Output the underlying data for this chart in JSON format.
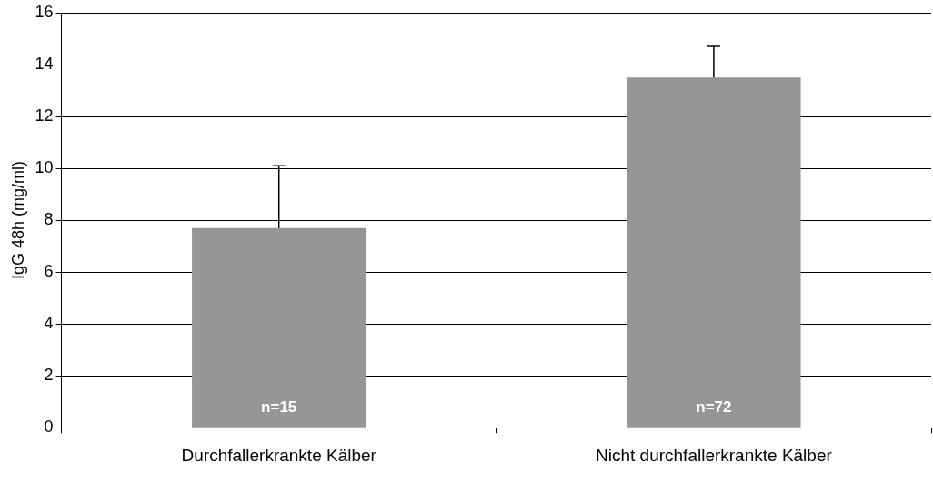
{
  "chart_data": {
    "type": "bar",
    "ylabel": "IgG 48h (mg/ml)",
    "categories": [
      "Durchfallerkrankte Kälber",
      "Nicht durchfallerkrankte Kälber"
    ],
    "values": [
      7.7,
      13.5
    ],
    "color": "#969696",
    "errors": [
      [
        7.7,
        10.1
      ],
      [
        13.5,
        14.7
      ]
    ],
    "ylim": [
      0,
      16
    ],
    "yticks": [
      0,
      2,
      4,
      6,
      8,
      10,
      12,
      14,
      16
    ],
    "grid": "y",
    "legend": false,
    "annotations": [
      "n=15",
      "n=72"
    ]
  }
}
